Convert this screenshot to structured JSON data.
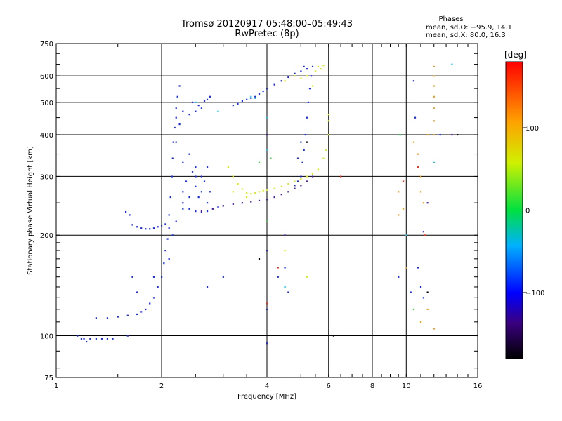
{
  "chart_data": {
    "type": "scatter",
    "title": "Tromsø 20120917 05:48:00–05:49:43",
    "subtitle": "RwPretec (8p)",
    "xlabel": "Frequency [MHz]",
    "ylabel": "Stationary phase Virtual Height [km]",
    "xscale": "log",
    "yscale": "log",
    "xlim": [
      1,
      16
    ],
    "ylim": [
      75,
      750
    ],
    "xticks": [
      1,
      2,
      4,
      6,
      8,
      10,
      16
    ],
    "xtick_labels": [
      "1",
      "2",
      "4",
      "6",
      "8",
      "10",
      "16"
    ],
    "yticks": [
      75,
      100,
      200,
      300,
      400,
      500,
      600,
      750
    ],
    "ytick_labels": [
      "75",
      "100",
      "200",
      "300",
      "400",
      "500",
      "600",
      "750"
    ],
    "grid": true,
    "info": {
      "heading": "Phases",
      "line_o": "mean, sd,O: −95.9, 14.1",
      "line_x": "mean, sd,X:  80.0, 16.3"
    },
    "colorbar": {
      "label": "[deg]",
      "range": [
        -180,
        180
      ],
      "ticks": [
        100,
        0,
        -100
      ],
      "tick_labels": [
        "100",
        "0",
        "−100"
      ]
    },
    "series": [
      {
        "color": "#1a2ce0",
        "points": [
          [
            1.15,
            100
          ],
          [
            1.18,
            98
          ],
          [
            1.2,
            98
          ],
          [
            1.25,
            98
          ],
          [
            1.3,
            98
          ],
          [
            1.35,
            98
          ],
          [
            1.4,
            98
          ],
          [
            1.45,
            98
          ],
          [
            1.22,
            96
          ],
          [
            1.3,
            113
          ],
          [
            1.4,
            113
          ],
          [
            1.5,
            114
          ],
          [
            1.6,
            115
          ],
          [
            1.7,
            116
          ],
          [
            1.75,
            118
          ],
          [
            1.8,
            120
          ],
          [
            1.85,
            125
          ],
          [
            1.9,
            130
          ],
          [
            1.95,
            140
          ],
          [
            2.0,
            150
          ],
          [
            2.03,
            165
          ],
          [
            2.05,
            180
          ],
          [
            2.08,
            195
          ],
          [
            2.1,
            210
          ],
          [
            2.1,
            230
          ],
          [
            2.12,
            260
          ],
          [
            2.14,
            300
          ],
          [
            2.15,
            340
          ],
          [
            2.16,
            380
          ],
          [
            2.18,
            420
          ],
          [
            2.2,
            450
          ],
          [
            2.2,
            480
          ],
          [
            2.22,
            520
          ],
          [
            2.25,
            560
          ],
          [
            2.1,
            170
          ],
          [
            2.15,
            200
          ],
          [
            2.2,
            220
          ],
          [
            2.3,
            240
          ],
          [
            2.4,
            260
          ],
          [
            2.5,
            280
          ],
          [
            2.6,
            300
          ],
          [
            2.7,
            320
          ],
          [
            2.3,
            330
          ],
          [
            2.4,
            350
          ],
          [
            2.5,
            300
          ],
          [
            2.6,
            270
          ],
          [
            2.7,
            250
          ],
          [
            2.4,
            240
          ],
          [
            2.5,
            320
          ],
          [
            2.35,
            290
          ],
          [
            2.45,
            310
          ],
          [
            2.55,
            260
          ],
          [
            2.65,
            290
          ],
          [
            2.75,
            270
          ],
          [
            2.3,
            270
          ],
          [
            2.2,
            380
          ],
          [
            2.25,
            430
          ],
          [
            2.3,
            470
          ],
          [
            2.5,
            470
          ],
          [
            2.6,
            480
          ],
          [
            2.7,
            510
          ],
          [
            2.75,
            520
          ],
          [
            2.65,
            505
          ],
          [
            2.4,
            460
          ],
          [
            2.45,
            500
          ],
          [
            2.55,
            490
          ],
          [
            1.62,
            230
          ],
          [
            1.65,
            215
          ],
          [
            1.7,
            212
          ],
          [
            1.75,
            210
          ],
          [
            1.8,
            209
          ],
          [
            1.85,
            209
          ],
          [
            1.9,
            210
          ],
          [
            1.95,
            212
          ],
          [
            2.0,
            214
          ],
          [
            2.05,
            216
          ],
          [
            1.58,
            235
          ],
          [
            2.3,
            250
          ],
          [
            2.4,
            240
          ],
          [
            2.5,
            236
          ],
          [
            2.6,
            234
          ],
          [
            2.7,
            236
          ],
          [
            2.8,
            240
          ],
          [
            2.9,
            243
          ],
          [
            3.0,
            245
          ],
          [
            3.2,
            490
          ],
          [
            3.3,
            495
          ],
          [
            3.4,
            505
          ],
          [
            3.5,
            510
          ],
          [
            3.6,
            515
          ],
          [
            3.7,
            520
          ],
          [
            3.8,
            530
          ],
          [
            3.9,
            540
          ],
          [
            4.0,
            550
          ],
          [
            4.2,
            565
          ],
          [
            4.4,
            580
          ],
          [
            4.6,
            595
          ],
          [
            4.8,
            610
          ],
          [
            5.0,
            620
          ],
          [
            5.2,
            630
          ],
          [
            5.1,
            640
          ],
          [
            5.05,
            330
          ],
          [
            5.1,
            360
          ],
          [
            5.15,
            400
          ],
          [
            5.2,
            450
          ],
          [
            5.25,
            500
          ],
          [
            5.3,
            550
          ],
          [
            5.35,
            600
          ],
          [
            5.4,
            640
          ],
          [
            5.0,
            300
          ],
          [
            4.9,
            290
          ],
          [
            4.8,
            282
          ],
          [
            4.9,
            340
          ],
          [
            5.0,
            380
          ],
          [
            4.0,
            95
          ],
          [
            4.0,
            120
          ],
          [
            4.0,
            180
          ],
          [
            4.3,
            150
          ],
          [
            4.5,
            160
          ],
          [
            1.6,
            100
          ],
          [
            1.9,
            150
          ],
          [
            2.7,
            140
          ],
          [
            3.0,
            150
          ],
          [
            1.7,
            135
          ],
          [
            1.65,
            150
          ],
          [
            10.5,
            580
          ],
          [
            10.6,
            450
          ],
          [
            10.8,
            160
          ],
          [
            11.0,
            140
          ],
          [
            11.2,
            130
          ],
          [
            12.5,
            400
          ],
          [
            9.5,
            150
          ],
          [
            10.3,
            135
          ],
          [
            4.6,
            135
          ]
        ]
      },
      {
        "color": "#4a1ea0",
        "points": [
          [
            3.0,
            245
          ],
          [
            3.2,
            248
          ],
          [
            3.4,
            250
          ],
          [
            3.6,
            252
          ],
          [
            3.8,
            254
          ],
          [
            4.0,
            256
          ],
          [
            4.2,
            260
          ],
          [
            4.4,
            265
          ],
          [
            4.6,
            270
          ],
          [
            4.8,
            276
          ],
          [
            5.0,
            282
          ],
          [
            5.2,
            290
          ],
          [
            5.4,
            300
          ],
          [
            2.8,
            240
          ],
          [
            2.6,
            236
          ],
          [
            4.0,
            400
          ],
          [
            4.5,
            200
          ],
          [
            11.5,
            250
          ],
          [
            11.2,
            205
          ],
          [
            13.5,
            400
          ]
        ]
      },
      {
        "color": "#d8e81e",
        "points": [
          [
            3.1,
            320
          ],
          [
            3.2,
            300
          ],
          [
            3.3,
            285
          ],
          [
            3.4,
            275
          ],
          [
            3.5,
            268
          ],
          [
            3.6,
            266
          ],
          [
            3.7,
            268
          ],
          [
            3.8,
            270
          ],
          [
            3.9,
            272
          ],
          [
            4.0,
            273
          ],
          [
            4.2,
            276
          ],
          [
            4.4,
            280
          ],
          [
            4.6,
            285
          ],
          [
            4.8,
            290
          ],
          [
            5.0,
            295
          ],
          [
            5.2,
            300
          ],
          [
            5.4,
            305
          ],
          [
            5.6,
            315
          ],
          [
            5.8,
            340
          ],
          [
            5.9,
            360
          ],
          [
            6.0,
            400
          ],
          [
            6.0,
            440
          ],
          [
            6.0,
            460
          ],
          [
            4.5,
            580
          ],
          [
            4.8,
            600
          ],
          [
            5.0,
            590
          ],
          [
            5.2,
            600
          ],
          [
            5.5,
            620
          ],
          [
            5.6,
            640
          ],
          [
            5.7,
            630
          ],
          [
            5.8,
            645
          ],
          [
            5.4,
            560
          ],
          [
            4.5,
            180
          ],
          [
            5.2,
            150
          ],
          [
            3.2,
            270
          ],
          [
            3.5,
            260
          ]
        ]
      },
      {
        "color": "#e8a020",
        "points": [
          [
            12.0,
            640
          ],
          [
            12.0,
            600
          ],
          [
            12.0,
            560
          ],
          [
            12.0,
            520
          ],
          [
            12.0,
            480
          ],
          [
            12.0,
            440
          ],
          [
            12.0,
            400
          ],
          [
            11.5,
            400
          ],
          [
            11.0,
            300
          ],
          [
            11.0,
            270
          ],
          [
            11.2,
            250
          ],
          [
            10.8,
            350
          ],
          [
            10.5,
            380
          ],
          [
            9.5,
            270
          ],
          [
            9.8,
            240
          ],
          [
            11.0,
            110
          ],
          [
            11.5,
            120
          ],
          [
            12.0,
            105
          ],
          [
            10.0,
            160
          ],
          [
            9.5,
            230
          ]
        ]
      },
      {
        "color": "#20c0e0",
        "points": [
          [
            3.6,
            520
          ],
          [
            3.7,
            515
          ],
          [
            4.0,
            450
          ],
          [
            4.0,
            360
          ],
          [
            2.5,
            500
          ],
          [
            2.9,
            470
          ],
          [
            4.5,
            140
          ],
          [
            13.5,
            650
          ],
          [
            12.0,
            330
          ],
          [
            10.0,
            200
          ],
          [
            9.6,
            400
          ]
        ]
      },
      {
        "color": "#40d040",
        "points": [
          [
            4.0,
            220
          ],
          [
            3.8,
            330
          ],
          [
            4.1,
            340
          ],
          [
            9.6,
            400
          ],
          [
            10.5,
            120
          ]
        ]
      },
      {
        "color": "#e83020",
        "points": [
          [
            4.0,
            125
          ],
          [
            4.3,
            160
          ],
          [
            9.8,
            290
          ],
          [
            10.8,
            320
          ],
          [
            11.3,
            200
          ],
          [
            6.5,
            300
          ]
        ]
      },
      {
        "color": "#000000",
        "points": [
          [
            6.2,
            100
          ],
          [
            3.8,
            170
          ],
          [
            5.2,
            380
          ],
          [
            11.5,
            135
          ],
          [
            14.0,
            400
          ]
        ]
      }
    ]
  }
}
